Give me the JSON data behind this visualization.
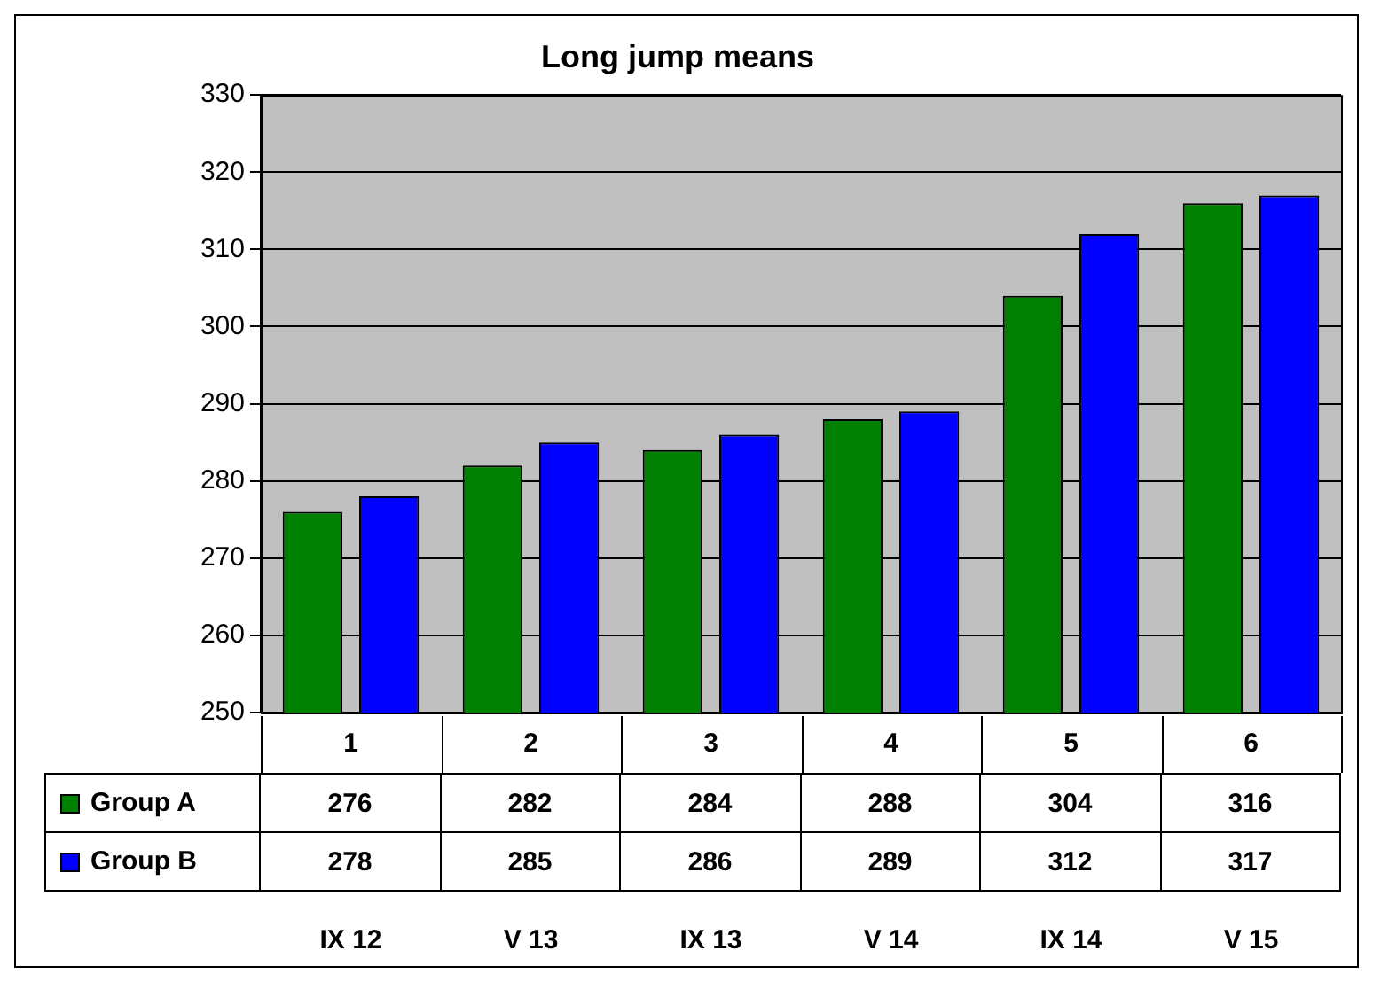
{
  "chart_data": {
    "type": "bar",
    "title": "Long jump means",
    "categories": [
      "1",
      "2",
      "3",
      "4",
      "5",
      "6"
    ],
    "series": [
      {
        "name": "Group A",
        "color": "#008000",
        "values": [
          276,
          282,
          284,
          288,
          304,
          316
        ]
      },
      {
        "name": "Group B",
        "color": "#0000ff",
        "values": [
          278,
          285,
          286,
          289,
          312,
          317
        ]
      }
    ],
    "ylim": [
      250,
      330
    ],
    "yticks": [
      250,
      260,
      270,
      280,
      290,
      300,
      310,
      320,
      330
    ],
    "grid": "y",
    "legend": "bottom",
    "data_labels": true,
    "annotations": [
      "IX 12",
      "V 13",
      "IX 13",
      "V 14",
      "IX 14",
      "V 15"
    ]
  }
}
